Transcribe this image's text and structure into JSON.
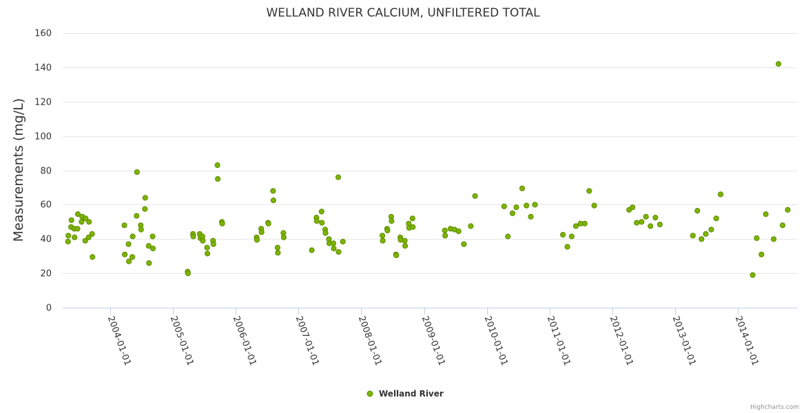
{
  "chart_data": {
    "type": "scatter",
    "title": "WELLAND RIVER CALCIUM, UNFILTERED TOTAL",
    "ylabel": "Measurements (mg/L)",
    "xlabel": "",
    "ylim": [
      0,
      160
    ],
    "yticks": [
      0,
      20,
      40,
      60,
      80,
      100,
      120,
      140,
      160
    ],
    "xlim": [
      "2003-04-01",
      "2014-12-15"
    ],
    "xticks": [
      "2004-01-01",
      "2005-01-01",
      "2006-01-01",
      "2007-01-01",
      "2008-01-01",
      "2009-01-01",
      "2010-01-01",
      "2011-01-01",
      "2012-01-01",
      "2013-01-01",
      "2014-01-01"
    ],
    "grid": true,
    "legend": "bottom-center",
    "series": [
      {
        "name": "Welland River",
        "color": "#7cb400",
        "points": [
          {
            "x": "2003-05-02",
            "y": 38.5
          },
          {
            "x": "2003-05-04",
            "y": 42
          },
          {
            "x": "2003-05-20",
            "y": 47
          },
          {
            "x": "2003-05-22",
            "y": 51
          },
          {
            "x": "2003-06-07",
            "y": 46
          },
          {
            "x": "2003-06-09",
            "y": 41
          },
          {
            "x": "2003-06-26",
            "y": 46
          },
          {
            "x": "2003-06-28",
            "y": 54.5
          },
          {
            "x": "2003-07-20",
            "y": 50
          },
          {
            "x": "2003-07-24",
            "y": 53
          },
          {
            "x": "2003-08-10",
            "y": 39
          },
          {
            "x": "2003-08-12",
            "y": 52
          },
          {
            "x": "2003-08-30",
            "y": 41
          },
          {
            "x": "2003-09-01",
            "y": 50
          },
          {
            "x": "2003-09-19",
            "y": 43
          },
          {
            "x": "2003-09-21",
            "y": 29.5
          },
          {
            "x": "2004-03-25",
            "y": 48
          },
          {
            "x": "2004-03-27",
            "y": 31
          },
          {
            "x": "2004-04-18",
            "y": 37
          },
          {
            "x": "2004-04-20",
            "y": 27
          },
          {
            "x": "2004-05-10",
            "y": 29.5
          },
          {
            "x": "2004-05-12",
            "y": 41.5
          },
          {
            "x": "2004-06-04",
            "y": 53.5
          },
          {
            "x": "2004-06-06",
            "y": 79
          },
          {
            "x": "2004-06-28",
            "y": 48
          },
          {
            "x": "2004-06-30",
            "y": 45.5
          },
          {
            "x": "2004-07-22",
            "y": 57.5
          },
          {
            "x": "2004-07-24",
            "y": 64
          },
          {
            "x": "2004-08-13",
            "y": 36
          },
          {
            "x": "2004-08-15",
            "y": 26
          },
          {
            "x": "2004-09-05",
            "y": 41.5
          },
          {
            "x": "2004-09-07",
            "y": 34.5
          },
          {
            "x": "2005-03-28",
            "y": 21
          },
          {
            "x": "2005-03-30",
            "y": 20
          },
          {
            "x": "2005-04-28",
            "y": 43
          },
          {
            "x": "2005-04-30",
            "y": 41.5
          },
          {
            "x": "2005-06-06",
            "y": 43
          },
          {
            "x": "2005-06-10",
            "y": 40.5
          },
          {
            "x": "2005-06-22",
            "y": 41.5
          },
          {
            "x": "2005-06-24",
            "y": 39
          },
          {
            "x": "2005-07-19",
            "y": 35
          },
          {
            "x": "2005-07-21",
            "y": 31.5
          },
          {
            "x": "2005-08-23",
            "y": 39
          },
          {
            "x": "2005-08-25",
            "y": 37
          },
          {
            "x": "2005-09-17",
            "y": 83
          },
          {
            "x": "2005-09-19",
            "y": 75
          },
          {
            "x": "2005-10-13",
            "y": 50
          },
          {
            "x": "2005-10-15",
            "y": 49
          },
          {
            "x": "2006-05-03",
            "y": 41
          },
          {
            "x": "2006-05-05",
            "y": 39.5
          },
          {
            "x": "2006-05-30",
            "y": 46
          },
          {
            "x": "2006-06-01",
            "y": 44
          },
          {
            "x": "2006-07-09",
            "y": 49.5
          },
          {
            "x": "2006-07-11",
            "y": 49
          },
          {
            "x": "2006-08-07",
            "y": 68
          },
          {
            "x": "2006-08-09",
            "y": 62.5
          },
          {
            "x": "2006-09-02",
            "y": 35
          },
          {
            "x": "2006-09-04",
            "y": 32
          },
          {
            "x": "2006-10-06",
            "y": 43.5
          },
          {
            "x": "2006-10-08",
            "y": 41
          },
          {
            "x": "2007-03-20",
            "y": 33.5
          },
          {
            "x": "2007-04-16",
            "y": 52.5
          },
          {
            "x": "2007-04-18",
            "y": 50.5
          },
          {
            "x": "2007-05-16",
            "y": 56
          },
          {
            "x": "2007-05-18",
            "y": 49.5
          },
          {
            "x": "2007-06-06",
            "y": 45.5
          },
          {
            "x": "2007-06-08",
            "y": 43.5
          },
          {
            "x": "2007-06-28",
            "y": 40
          },
          {
            "x": "2007-06-30",
            "y": 37.5
          },
          {
            "x": "2007-07-24",
            "y": 37.5
          },
          {
            "x": "2007-07-26",
            "y": 34.5
          },
          {
            "x": "2007-08-21",
            "y": 76
          },
          {
            "x": "2007-08-23",
            "y": 32.5
          },
          {
            "x": "2007-09-17",
            "y": 38.5
          },
          {
            "x": "2008-05-04",
            "y": 42
          },
          {
            "x": "2008-05-06",
            "y": 39
          },
          {
            "x": "2008-05-31",
            "y": 46
          },
          {
            "x": "2008-06-02",
            "y": 45
          },
          {
            "x": "2008-06-24",
            "y": 53
          },
          {
            "x": "2008-06-26",
            "y": 50.5
          },
          {
            "x": "2008-07-22",
            "y": 31
          },
          {
            "x": "2008-07-24",
            "y": 30.5
          },
          {
            "x": "2008-08-16",
            "y": 41
          },
          {
            "x": "2008-08-18",
            "y": 39.5
          },
          {
            "x": "2008-09-11",
            "y": 39
          },
          {
            "x": "2008-09-13",
            "y": 36
          },
          {
            "x": "2008-10-04",
            "y": 49
          },
          {
            "x": "2008-10-06",
            "y": 46.5
          },
          {
            "x": "2008-10-26",
            "y": 52
          },
          {
            "x": "2008-10-28",
            "y": 47
          },
          {
            "x": "2009-05-02",
            "y": 45
          },
          {
            "x": "2009-05-04",
            "y": 42
          },
          {
            "x": "2009-06-04",
            "y": 46
          },
          {
            "x": "2009-06-28",
            "y": 45.5
          },
          {
            "x": "2009-07-21",
            "y": 44.5
          },
          {
            "x": "2009-08-21",
            "y": 37
          },
          {
            "x": "2009-09-30",
            "y": 47.5
          },
          {
            "x": "2009-10-25",
            "y": 65
          },
          {
            "x": "2010-04-12",
            "y": 59
          },
          {
            "x": "2010-05-04",
            "y": 41.5
          },
          {
            "x": "2010-05-31",
            "y": 55
          },
          {
            "x": "2010-06-22",
            "y": 58.5
          },
          {
            "x": "2010-07-26",
            "y": 69.5
          },
          {
            "x": "2010-08-20",
            "y": 59.5
          },
          {
            "x": "2010-09-14",
            "y": 53
          },
          {
            "x": "2010-10-08",
            "y": 60
          },
          {
            "x": "2011-03-20",
            "y": 42.5
          },
          {
            "x": "2011-04-15",
            "y": 35.5
          },
          {
            "x": "2011-05-10",
            "y": 41.5
          },
          {
            "x": "2011-06-03",
            "y": 47.5
          },
          {
            "x": "2011-06-30",
            "y": 49
          },
          {
            "x": "2011-07-25",
            "y": 49
          },
          {
            "x": "2011-08-20",
            "y": 68
          },
          {
            "x": "2011-09-18",
            "y": 59.5
          },
          {
            "x": "2012-04-08",
            "y": 57
          },
          {
            "x": "2012-04-28",
            "y": 58.5
          },
          {
            "x": "2012-05-22",
            "y": 49.5
          },
          {
            "x": "2012-06-20",
            "y": 50
          },
          {
            "x": "2012-07-15",
            "y": 53
          },
          {
            "x": "2012-08-10",
            "y": 47.5
          },
          {
            "x": "2012-09-08",
            "y": 52.5
          },
          {
            "x": "2012-10-04",
            "y": 48.5
          },
          {
            "x": "2013-04-14",
            "y": 42
          },
          {
            "x": "2013-05-10",
            "y": 56.5
          },
          {
            "x": "2013-06-03",
            "y": 40
          },
          {
            "x": "2013-06-28",
            "y": 43
          },
          {
            "x": "2013-07-30",
            "y": 45.5
          },
          {
            "x": "2013-08-28",
            "y": 52
          },
          {
            "x": "2013-09-22",
            "y": 66
          },
          {
            "x": "2014-03-28",
            "y": 19
          },
          {
            "x": "2014-04-20",
            "y": 40.5
          },
          {
            "x": "2014-05-18",
            "y": 31
          },
          {
            "x": "2014-06-12",
            "y": 54.5
          },
          {
            "x": "2014-07-28",
            "y": 40
          },
          {
            "x": "2014-08-25",
            "y": 142
          },
          {
            "x": "2014-09-18",
            "y": 48
          },
          {
            "x": "2014-10-18",
            "y": 57
          }
        ]
      }
    ],
    "credits": "Highcharts.com"
  }
}
